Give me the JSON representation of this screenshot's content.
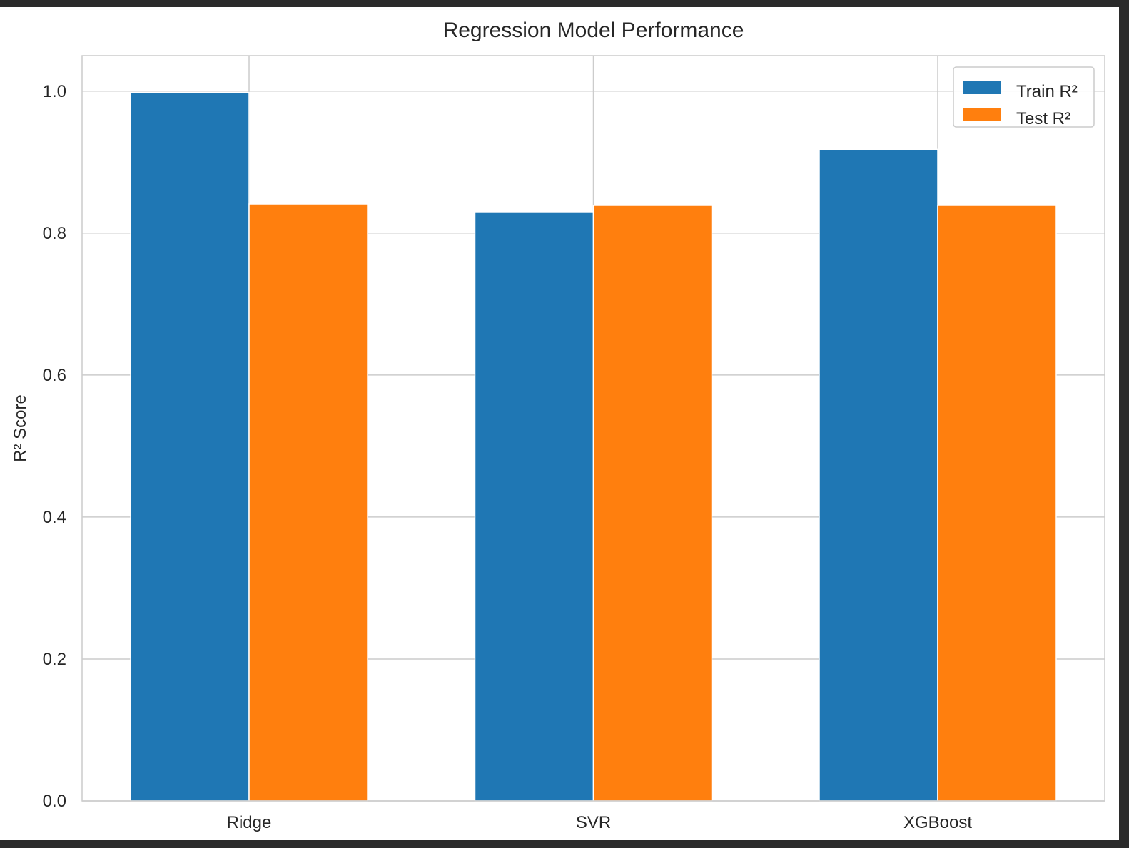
{
  "chart_data": {
    "type": "bar",
    "title": "Regression Model Performance",
    "xlabel": "",
    "ylabel": "R² Score",
    "categories": [
      "Ridge",
      "SVR",
      "XGBoost"
    ],
    "series": [
      {
        "name": "Train R²",
        "color": "#1f77b4",
        "values": [
          0.998,
          0.83,
          0.918
        ]
      },
      {
        "name": "Test R²",
        "color": "#ff7f0e",
        "values": [
          0.841,
          0.839,
          0.839
        ]
      }
    ],
    "ylim": [
      0,
      1.05
    ],
    "yticks": [
      0.0,
      0.2,
      0.4,
      0.6,
      0.8,
      1.0
    ],
    "ytick_labels": [
      "0.0",
      "0.2",
      "0.4",
      "0.6",
      "0.8",
      "1.0"
    ],
    "grid": true,
    "legend_position": "top-right"
  }
}
